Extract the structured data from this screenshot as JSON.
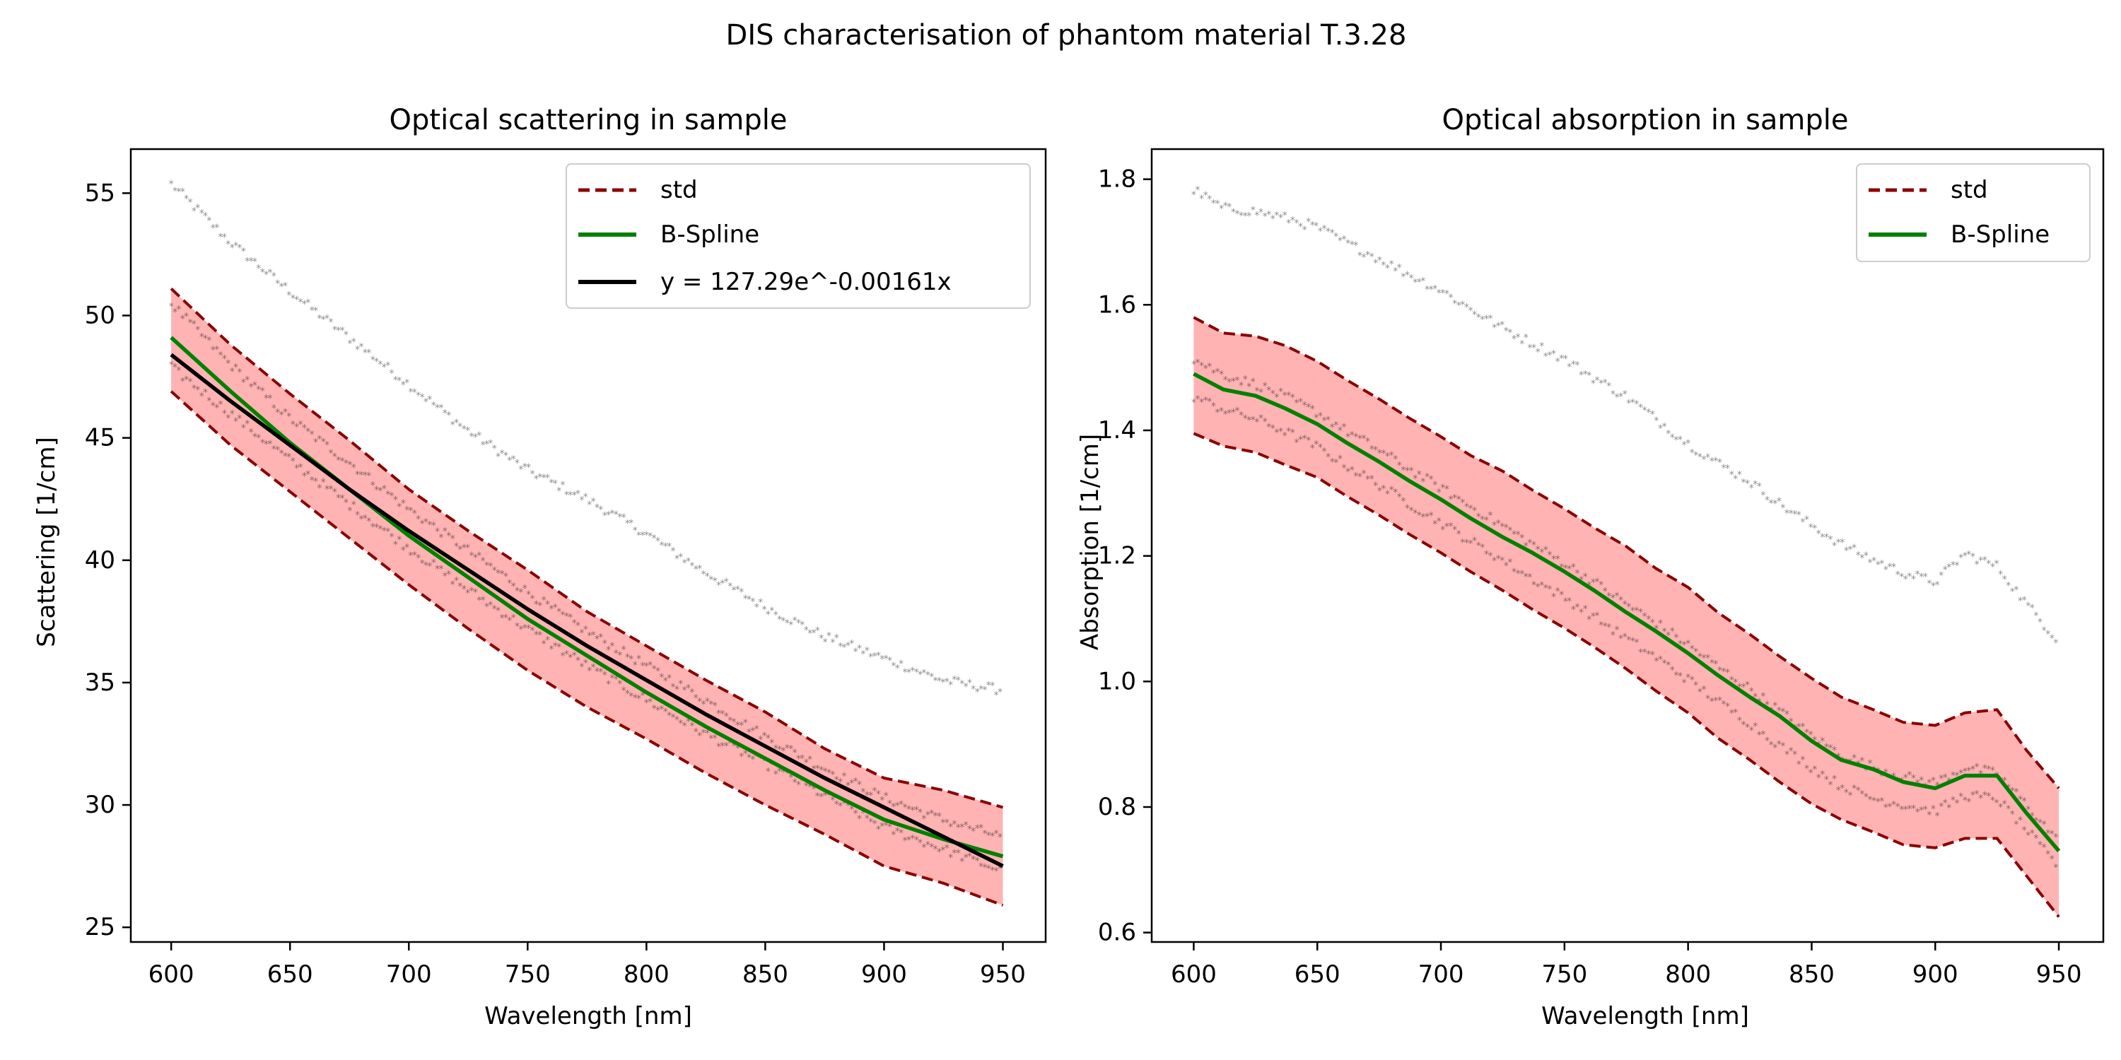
{
  "figure": {
    "title": "DIS characterisation of phantom material T.3.28"
  },
  "chart_data": [
    {
      "type": "line",
      "title": "Optical scattering in sample",
      "xlabel": "Wavelength [nm]",
      "ylabel": "Scattering [1/cm]",
      "xlim": [
        583,
        968
      ],
      "ylim": [
        24.4,
        56.8
      ],
      "xticks": [
        600,
        650,
        700,
        750,
        800,
        850,
        900,
        950
      ],
      "yticks": [
        25,
        30,
        35,
        40,
        45,
        50,
        55
      ],
      "grid": false,
      "legend_position": "top-right",
      "x": [
        600,
        625,
        650,
        675,
        700,
        725,
        750,
        775,
        800,
        825,
        850,
        875,
        900,
        925,
        950
      ],
      "series": [
        {
          "name": "std",
          "role": "std_upper",
          "color": "#8b0000",
          "values": [
            51.1,
            48.8,
            46.8,
            44.9,
            42.9,
            41.2,
            39.6,
            37.9,
            36.5,
            35.1,
            33.8,
            32.3,
            31.1,
            30.6,
            29.9
          ]
        },
        {
          "name": "std",
          "role": "std_lower",
          "color": "#8b0000",
          "values": [
            46.9,
            44.7,
            42.8,
            40.9,
            39.0,
            37.2,
            35.5,
            34.0,
            32.7,
            31.3,
            30.0,
            28.8,
            27.5,
            26.8,
            25.9
          ]
        },
        {
          "name": "B-Spline",
          "role": "spline",
          "color": "#008000",
          "values": [
            49.1,
            46.9,
            44.8,
            42.9,
            41.0,
            39.3,
            37.6,
            36.1,
            34.6,
            33.2,
            31.9,
            30.6,
            29.4,
            28.6,
            27.9
          ]
        },
        {
          "name": "y = 127.29e^-0.00161x",
          "role": "fit",
          "color": "#000000",
          "values": [
            48.4,
            46.5,
            44.7,
            42.9,
            41.2,
            39.6,
            38.0,
            36.5,
            35.1,
            33.7,
            32.4,
            31.1,
            29.9,
            28.7,
            27.5
          ]
        },
        {
          "role": "samples_high",
          "color": "#6a5a9a",
          "values": [
            55.3,
            52.9,
            50.9,
            49.0,
            47.1,
            45.2,
            43.6,
            42.4,
            41.0,
            39.4,
            38.0,
            36.8,
            35.9,
            35.0,
            34.6
          ]
        },
        {
          "role": "samples_mid",
          "color": "#c0407a",
          "values": [
            50.4,
            47.9,
            45.7,
            43.9,
            42.0,
            40.3,
            38.6,
            37.0,
            35.6,
            34.2,
            32.7,
            31.4,
            30.2,
            29.3,
            28.6
          ]
        },
        {
          "role": "samples_low",
          "color": "#d69a30",
          "values": [
            47.8,
            45.9,
            44.0,
            42.2,
            40.4,
            38.7,
            37.1,
            35.6,
            34.2,
            32.8,
            31.6,
            30.3,
            29.0,
            28.1,
            27.2
          ]
        }
      ]
    },
    {
      "type": "line",
      "title": "Optical absorption in sample",
      "xlabel": "Wavelength [nm]",
      "ylabel": "Absorption [1/cm]",
      "xlim": [
        583,
        968
      ],
      "ylim": [
        0.585,
        1.848
      ],
      "xticks": [
        600,
        650,
        700,
        750,
        800,
        850,
        900,
        950
      ],
      "yticks": [
        0.6,
        0.8,
        1.0,
        1.2,
        1.4,
        1.6,
        1.8
      ],
      "grid": false,
      "legend_position": "top-right",
      "x": [
        600,
        612,
        625,
        637,
        650,
        662,
        675,
        687,
        700,
        712,
        725,
        737,
        750,
        762,
        775,
        787,
        800,
        812,
        825,
        837,
        850,
        862,
        875,
        887,
        900,
        912,
        925,
        937,
        950
      ],
      "series": [
        {
          "name": "std",
          "role": "std_upper",
          "color": "#8b0000",
          "values": [
            1.58,
            1.555,
            1.55,
            1.535,
            1.51,
            1.48,
            1.45,
            1.42,
            1.39,
            1.36,
            1.335,
            1.305,
            1.275,
            1.245,
            1.215,
            1.18,
            1.15,
            1.11,
            1.075,
            1.04,
            1.005,
            0.975,
            0.955,
            0.935,
            0.93,
            0.95,
            0.955,
            0.89,
            0.83
          ]
        },
        {
          "name": "std",
          "role": "std_lower",
          "color": "#8b0000",
          "values": [
            1.395,
            1.375,
            1.365,
            1.345,
            1.325,
            1.295,
            1.265,
            1.235,
            1.205,
            1.175,
            1.145,
            1.115,
            1.085,
            1.055,
            1.02,
            0.985,
            0.95,
            0.91,
            0.875,
            0.84,
            0.805,
            0.78,
            0.76,
            0.74,
            0.735,
            0.75,
            0.75,
            0.69,
            0.625
          ]
        },
        {
          "name": "B-Spline",
          "role": "spline",
          "color": "#008000",
          "values": [
            1.49,
            1.465,
            1.455,
            1.435,
            1.41,
            1.38,
            1.35,
            1.32,
            1.29,
            1.26,
            1.23,
            1.205,
            1.175,
            1.145,
            1.11,
            1.08,
            1.045,
            1.01,
            0.975,
            0.945,
            0.905,
            0.875,
            0.86,
            0.84,
            0.83,
            0.85,
            0.85,
            0.79,
            0.73
          ]
        },
        {
          "role": "samples_high",
          "color": "#6a5a9a",
          "values": [
            1.78,
            1.75,
            1.745,
            1.735,
            1.72,
            1.695,
            1.67,
            1.645,
            1.62,
            1.59,
            1.56,
            1.535,
            1.51,
            1.48,
            1.45,
            1.415,
            1.375,
            1.345,
            1.315,
            1.28,
            1.245,
            1.215,
            1.19,
            1.17,
            1.155,
            1.2,
            1.18,
            1.12,
            1.06
          ]
        },
        {
          "role": "samples_mid",
          "color": "#d69a30",
          "values": [
            1.51,
            1.485,
            1.47,
            1.45,
            1.425,
            1.395,
            1.365,
            1.335,
            1.305,
            1.275,
            1.245,
            1.215,
            1.185,
            1.155,
            1.12,
            1.09,
            1.055,
            1.02,
            0.985,
            0.95,
            0.91,
            0.88,
            0.86,
            0.845,
            0.835,
            0.86,
            0.85,
            0.8,
            0.74
          ]
        },
        {
          "role": "samples_low",
          "color": "#5a4a6a",
          "values": [
            1.45,
            1.43,
            1.415,
            1.395,
            1.37,
            1.34,
            1.31,
            1.28,
            1.25,
            1.22,
            1.19,
            1.16,
            1.13,
            1.1,
            1.065,
            1.035,
            1.0,
            0.965,
            0.93,
            0.895,
            0.86,
            0.83,
            0.81,
            0.8,
            0.79,
            0.815,
            0.81,
            0.76,
            0.7
          ]
        }
      ]
    }
  ]
}
